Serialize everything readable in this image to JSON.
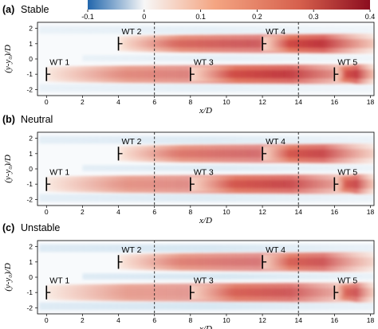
{
  "chart_data": {
    "type": "heatmap",
    "colorbar": {
      "ticks": [
        "-0.1",
        "0",
        "0.1",
        "0.2",
        "0.3",
        "0.4"
      ],
      "range": [
        -0.1,
        0.4
      ],
      "colors": {
        "negative": "#2166ac",
        "zero": "#f7f7f7",
        "positive": "#b2182b"
      }
    },
    "x_axis": {
      "label": "x/D",
      "ticks": [
        "0",
        "2",
        "4",
        "6",
        "8",
        "10",
        "12",
        "14",
        "16",
        "18"
      ],
      "range": [
        -0.5,
        18.2
      ]
    },
    "y_axis": {
      "label": "(y-y₀)/D",
      "ticks": [
        "2",
        "1",
        "0",
        "-1",
        "-2"
      ],
      "range": [
        -2.4,
        2.4
      ]
    },
    "dashed_lines_x": [
      6,
      14
    ],
    "turbines": [
      {
        "label": "WT 1",
        "x": 0,
        "y": -1
      },
      {
        "label": "WT 2",
        "x": 4,
        "y": 1
      },
      {
        "label": "WT 3",
        "x": 8,
        "y": -1
      },
      {
        "label": "WT 4",
        "x": 12,
        "y": 1
      },
      {
        "label": "WT 5",
        "x": 16,
        "y": -1
      }
    ],
    "panels": [
      {
        "tag": "(a)",
        "condition": "Stable",
        "peak_deficit": [
          0.18,
          0.26,
          0.33,
          0.35,
          0.32
        ]
      },
      {
        "tag": "(b)",
        "condition": "Neutral",
        "peak_deficit": [
          0.16,
          0.22,
          0.28,
          0.28,
          0.27
        ]
      },
      {
        "tag": "(c)",
        "condition": "Unstable",
        "peak_deficit": [
          0.14,
          0.2,
          0.24,
          0.24,
          0.24
        ]
      }
    ]
  }
}
